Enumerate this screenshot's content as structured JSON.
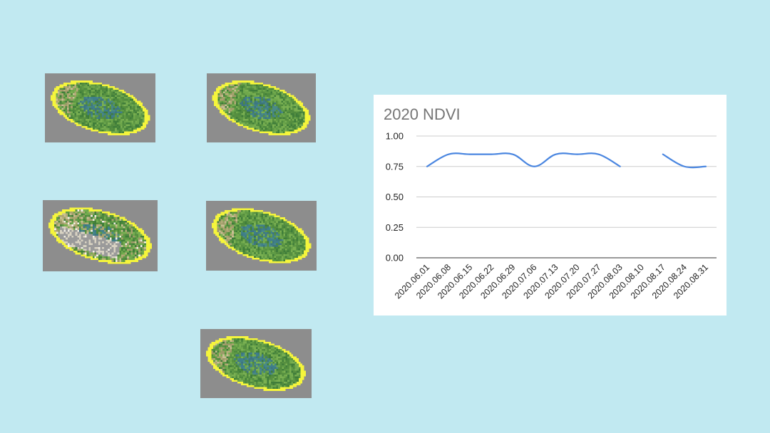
{
  "thumbnails": [
    {
      "name": "field-image-1",
      "style": "clear"
    },
    {
      "name": "field-image-2",
      "style": "clear"
    },
    {
      "name": "field-image-3",
      "style": "cloudy"
    },
    {
      "name": "field-image-4",
      "style": "clear"
    },
    {
      "name": "field-image-5",
      "style": "clear"
    }
  ],
  "colors": {
    "background": "#c1e9f1",
    "line": "#4a86e0",
    "field_outline": "#f5f53c",
    "thumb_bg": "#8d8d8d"
  },
  "chart_data": {
    "type": "line",
    "title": "2020 NDVI",
    "xlabel": "",
    "ylabel": "",
    "ylim": [
      0,
      1
    ],
    "yticks": [
      "0.00",
      "0.25",
      "0.50",
      "0.75",
      "1.00"
    ],
    "grid": true,
    "categories": [
      "2020.06.01",
      "2020.06.08",
      "2020.06.15",
      "2020.06.22",
      "2020.06.29",
      "2020.07.06",
      "2020.07.13",
      "2020.07.20",
      "2020.07.27",
      "2020.08.03",
      "2020.08.10",
      "2020.08.17",
      "2020.08.24",
      "2020.08.31"
    ],
    "series": [
      {
        "values": [
          0.75,
          0.85,
          0.85,
          0.85,
          0.85,
          0.75,
          0.85,
          0.85,
          0.85,
          0.75,
          null,
          0.85,
          0.75,
          0.75
        ]
      }
    ]
  }
}
